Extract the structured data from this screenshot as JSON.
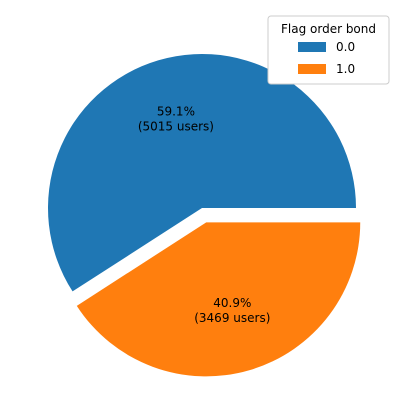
{
  "chart_data": {
    "type": "pie",
    "title": "",
    "legend": {
      "title": "Flag order bond",
      "placement": "top-right"
    },
    "slices": [
      {
        "label": "0.0",
        "value": 5015,
        "percent_text": "59.1%",
        "count_text": "(5015 users)",
        "color": "#1f77b4",
        "exploded": false
      },
      {
        "label": "1.0",
        "value": 3469,
        "percent_text": "40.9%",
        "count_text": "(3469 users)",
        "color": "#ff7f0e",
        "exploded": true
      }
    ]
  }
}
